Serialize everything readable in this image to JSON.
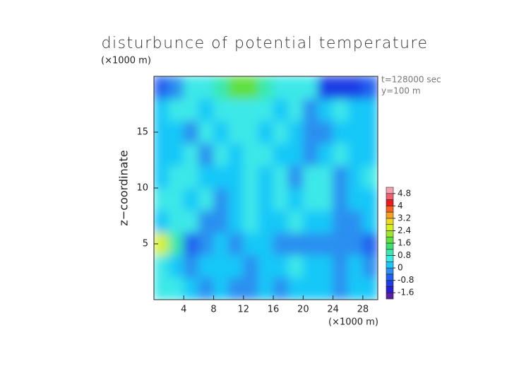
{
  "chart_data": {
    "type": "heatmap",
    "title": "disturbunce of potential temperature",
    "y_unit": "(×1000 m)",
    "x_unit": "(×1000 m)",
    "ylabel": "z−coordinate",
    "annotations": [
      "t=128000 sec",
      "y=100 m"
    ],
    "xlim": [
      0,
      30
    ],
    "ylim": [
      0,
      20
    ],
    "xticks": [
      4,
      8,
      12,
      16,
      20,
      24,
      28
    ],
    "yticks": [
      5,
      10,
      15
    ],
    "x": [
      1,
      3,
      5,
      7,
      9,
      11,
      13,
      15,
      17,
      19,
      21,
      23,
      25,
      27,
      29
    ],
    "y": [
      1,
      3,
      5,
      7,
      9,
      11,
      13,
      15,
      17,
      19
    ],
    "values": [
      [
        0.4,
        0.4,
        0,
        -0.2,
        0.2,
        -0.2,
        -0.2,
        0.2,
        -0.2,
        0,
        0,
        0.2,
        -0.2,
        0,
        0.2
      ],
      [
        0.4,
        0.2,
        -0.2,
        0.2,
        0,
        0.2,
        -0.2,
        0.2,
        0,
        0.4,
        0.2,
        0,
        -0.2,
        0,
        -0.4
      ],
      [
        2.4,
        0.8,
        -0.8,
        -0.4,
        0.2,
        -0.2,
        0.2,
        0,
        -0.4,
        -0.4,
        -0.4,
        -0.2,
        -0.4,
        -0.4,
        -0.8
      ],
      [
        0.2,
        0.4,
        0.4,
        -0.4,
        -0.4,
        0.2,
        0.4,
        0.2,
        0.2,
        0.4,
        0.2,
        0.2,
        -0.4,
        -0.2,
        0.2
      ],
      [
        0.4,
        0.4,
        0.2,
        0.4,
        -0.4,
        0.2,
        0.4,
        0.2,
        0.4,
        0.2,
        0.4,
        0.4,
        -0.4,
        0.2,
        0.2
      ],
      [
        0.2,
        0.4,
        0.4,
        0.2,
        0,
        0.2,
        0.4,
        0.2,
        0.4,
        -0.4,
        0.4,
        0.4,
        -0.2,
        0.2,
        0.4
      ],
      [
        0.2,
        0.2,
        0.4,
        -0.2,
        0.4,
        0.2,
        0.4,
        0.4,
        0.2,
        0,
        -0.4,
        0,
        0.4,
        0.2,
        0.2
      ],
      [
        0.2,
        0.2,
        -0.4,
        0.4,
        0.2,
        0.4,
        0.4,
        0.2,
        0.4,
        0.2,
        -0.4,
        -0.4,
        0.2,
        0.2,
        0.2
      ],
      [
        0.2,
        0.4,
        0.4,
        0,
        0.4,
        0.4,
        0.4,
        0.4,
        0.2,
        0.4,
        -0.4,
        0.2,
        0.4,
        0.2,
        0.2
      ],
      [
        -0.8,
        -0.4,
        0.4,
        0.4,
        0.8,
        1.6,
        1.6,
        0.8,
        0.4,
        0.4,
        0.4,
        -1.2,
        -1.2,
        -1.2,
        -0.8
      ]
    ],
    "colorbar": {
      "levels": [
        -2.0,
        -1.6,
        -1.2,
        -0.8,
        -0.4,
        0,
        0.4,
        0.8,
        1.2,
        1.6,
        2.0,
        2.4,
        2.8,
        3.2,
        3.6,
        4.0,
        4.4,
        4.8,
        5.2
      ],
      "colors": [
        "#5a1fa8",
        "#2a1fd0",
        "#1e3ce6",
        "#2060f0",
        "#2a8ff0",
        "#19c8f8",
        "#3ce8e8",
        "#38e8b0",
        "#40e070",
        "#60e040",
        "#a0e830",
        "#d8f020",
        "#f0d820",
        "#f8a020",
        "#f86020",
        "#f01818",
        "#f06070",
        "#f8a0b0"
      ],
      "ticks": [
        -1.6,
        -0.8,
        0,
        0.8,
        1.6,
        2.4,
        3.2,
        4,
        4.8
      ]
    }
  }
}
